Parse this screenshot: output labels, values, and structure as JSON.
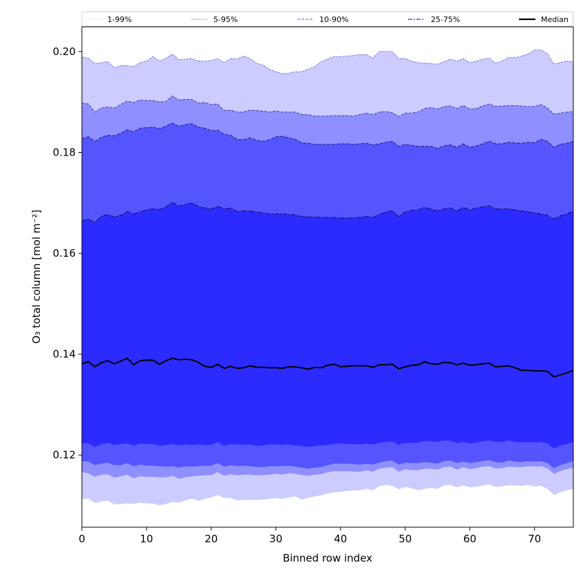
{
  "chart_data": {
    "type": "area",
    "title": "",
    "xlabel": "Binned row index",
    "ylabel": "O₃ total column [mol m⁻²]",
    "xlim": [
      0,
      76
    ],
    "ylim": [
      0.1057,
      0.2049
    ],
    "xticks": [
      0,
      10,
      20,
      30,
      40,
      50,
      60,
      70
    ],
    "xtick_labels": [
      "0",
      "10",
      "20",
      "30",
      "40",
      "50",
      "60",
      "70"
    ],
    "yticks": [
      0.12,
      0.14,
      0.16,
      0.18,
      0.2
    ],
    "ytick_labels": [
      "0.12",
      "0.14",
      "0.16",
      "0.18",
      "0.20"
    ],
    "grid": false,
    "legend_position": "top",
    "legend": [
      {
        "label": "1-99%",
        "color": "#ccccff",
        "style": "dotted-dash"
      },
      {
        "label": "5-95%",
        "color": "#8f8fff",
        "style": "dashed"
      },
      {
        "label": "10-90%",
        "color": "#5555ff",
        "style": "dashed"
      },
      {
        "label": "25-75%",
        "color": "#2b2bff",
        "style": "dash-dot"
      },
      {
        "label": "Median",
        "color": "#000000",
        "style": "solid"
      }
    ],
    "bands": [
      {
        "name": "1-99%",
        "fill": "#ccccff",
        "edge": "#5a5ad6",
        "edge_width": 0.8
      },
      {
        "name": "5-95%",
        "fill": "#8f8fff",
        "edge": "#3a3ab0",
        "edge_width": 1.0
      },
      {
        "name": "10-90%",
        "fill": "#5555ff",
        "edge": "#1f1f8a",
        "edge_width": 1.1
      },
      {
        "name": "25-75%",
        "fill": "#2b2bff",
        "edge": "#101060",
        "edge_width": 1.2
      }
    ],
    "x": [
      0,
      1,
      2,
      3,
      4,
      5,
      6,
      7,
      8,
      9,
      10,
      11,
      12,
      13,
      14,
      15,
      16,
      17,
      18,
      19,
      20,
      21,
      22,
      23,
      24,
      25,
      26,
      27,
      28,
      29,
      30,
      31,
      32,
      33,
      34,
      35,
      36,
      37,
      38,
      39,
      40,
      41,
      42,
      43,
      44,
      45,
      46,
      47,
      48,
      49,
      50,
      51,
      52,
      53,
      54,
      55,
      56,
      57,
      58,
      59,
      60,
      61,
      62,
      63,
      64,
      65,
      66,
      67,
      68,
      69,
      70,
      71,
      72,
      73,
      74,
      75,
      76
    ],
    "series": [
      {
        "name": "p99",
        "values": [
          0.1989,
          0.1987,
          0.1976,
          0.1978,
          0.198,
          0.1968,
          0.1972,
          0.1972,
          0.197,
          0.1978,
          0.1981,
          0.199,
          0.1981,
          0.1987,
          0.1995,
          0.1984,
          0.1985,
          0.1986,
          0.1981,
          0.1981,
          0.1982,
          0.1986,
          0.1978,
          0.1986,
          0.1985,
          0.1991,
          0.1986,
          0.1977,
          0.1973,
          0.1965,
          0.196,
          0.1956,
          0.1957,
          0.196,
          0.196,
          0.1965,
          0.197,
          0.198,
          0.1985,
          0.199,
          0.199,
          0.1991,
          0.1992,
          0.1994,
          0.1994,
          0.1987,
          0.2,
          0.2,
          0.2,
          0.1986,
          0.1986,
          0.1981,
          0.1978,
          0.1977,
          0.1976,
          0.1975,
          0.198,
          0.1985,
          0.1981,
          0.1986,
          0.1978,
          0.1981,
          0.1985,
          0.1987,
          0.1977,
          0.1981,
          0.1988,
          0.1988,
          0.1991,
          0.1995,
          0.2003,
          0.2003,
          0.1996,
          0.1975,
          0.1978,
          0.1981,
          0.198
        ]
      },
      {
        "name": "p95",
        "values": [
          0.1898,
          0.1896,
          0.188,
          0.1888,
          0.189,
          0.1888,
          0.1895,
          0.1902,
          0.1899,
          0.1904,
          0.1903,
          0.1903,
          0.19,
          0.1901,
          0.1912,
          0.1904,
          0.1905,
          0.1905,
          0.1898,
          0.1899,
          0.1895,
          0.1896,
          0.1883,
          0.1884,
          0.188,
          0.188,
          0.1884,
          0.1883,
          0.1882,
          0.188,
          0.1882,
          0.188,
          0.188,
          0.188,
          0.1875,
          0.1875,
          0.1872,
          0.1872,
          0.1872,
          0.1873,
          0.1873,
          0.1873,
          0.1872,
          0.1875,
          0.1878,
          0.1875,
          0.188,
          0.1881,
          0.1879,
          0.1871,
          0.1878,
          0.1878,
          0.188,
          0.1887,
          0.1889,
          0.1886,
          0.1891,
          0.1892,
          0.1887,
          0.1893,
          0.1886,
          0.1887,
          0.1892,
          0.1896,
          0.1891,
          0.1892,
          0.1893,
          0.1893,
          0.1892,
          0.1891,
          0.1891,
          0.1895,
          0.1888,
          0.1876,
          0.1878,
          0.188,
          0.1881
        ]
      },
      {
        "name": "p90",
        "values": [
          0.1827,
          0.1831,
          0.1822,
          0.183,
          0.1834,
          0.1833,
          0.1838,
          0.1845,
          0.1841,
          0.1848,
          0.1849,
          0.185,
          0.1847,
          0.1852,
          0.1858,
          0.1852,
          0.1855,
          0.1857,
          0.185,
          0.1848,
          0.1843,
          0.1844,
          0.1836,
          0.1834,
          0.1826,
          0.1825,
          0.1829,
          0.1824,
          0.1822,
          0.1825,
          0.1831,
          0.1832,
          0.1829,
          0.1826,
          0.1819,
          0.1818,
          0.1816,
          0.1816,
          0.1816,
          0.1816,
          0.1817,
          0.1817,
          0.1816,
          0.1817,
          0.1818,
          0.1815,
          0.1817,
          0.182,
          0.1822,
          0.1812,
          0.1816,
          0.1814,
          0.1812,
          0.1812,
          0.1812,
          0.1808,
          0.1813,
          0.1815,
          0.181,
          0.1817,
          0.181,
          0.1813,
          0.1817,
          0.1822,
          0.1817,
          0.1817,
          0.182,
          0.1819,
          0.1818,
          0.182,
          0.1819,
          0.1826,
          0.1822,
          0.181,
          0.1816,
          0.1818,
          0.1822
        ]
      },
      {
        "name": "p75",
        "values": [
          0.1664,
          0.1668,
          0.1661,
          0.1673,
          0.1677,
          0.1672,
          0.1675,
          0.1683,
          0.1678,
          0.1682,
          0.1686,
          0.1688,
          0.1687,
          0.1692,
          0.1701,
          0.1693,
          0.1697,
          0.17,
          0.1693,
          0.169,
          0.1688,
          0.1693,
          0.1688,
          0.169,
          0.1683,
          0.1684,
          0.1684,
          0.1682,
          0.168,
          0.1678,
          0.1678,
          0.1678,
          0.1677,
          0.1676,
          0.1673,
          0.1672,
          0.1672,
          0.1671,
          0.1671,
          0.1671,
          0.167,
          0.167,
          0.167,
          0.1671,
          0.1673,
          0.1671,
          0.1677,
          0.1682,
          0.1684,
          0.1673,
          0.1682,
          0.1685,
          0.1686,
          0.1691,
          0.1688,
          0.1684,
          0.1688,
          0.169,
          0.1684,
          0.1691,
          0.1686,
          0.169,
          0.1692,
          0.1694,
          0.1688,
          0.1688,
          0.1688,
          0.1686,
          0.1684,
          0.1682,
          0.168,
          0.1678,
          0.1675,
          0.1668,
          0.1674,
          0.1678,
          0.1684
        ]
      },
      {
        "name": "median",
        "values": [
          0.1381,
          0.1385,
          0.1375,
          0.1383,
          0.1387,
          0.1381,
          0.1386,
          0.1392,
          0.1379,
          0.1387,
          0.1388,
          0.1388,
          0.138,
          0.1387,
          0.1392,
          0.1389,
          0.139,
          0.1389,
          0.1384,
          0.1376,
          0.1374,
          0.138,
          0.1372,
          0.1376,
          0.1372,
          0.1373,
          0.1377,
          0.1374,
          0.1374,
          0.1373,
          0.1373,
          0.1372,
          0.1375,
          0.1375,
          0.1373,
          0.137,
          0.1374,
          0.1373,
          0.1378,
          0.138,
          0.1375,
          0.1376,
          0.1377,
          0.1377,
          0.1377,
          0.1374,
          0.1379,
          0.1379,
          0.138,
          0.1371,
          0.1375,
          0.1378,
          0.1379,
          0.1385,
          0.1381,
          0.138,
          0.1384,
          0.1383,
          0.1379,
          0.1382,
          0.1378,
          0.1379,
          0.1381,
          0.1382,
          0.1375,
          0.1376,
          0.1377,
          0.1373,
          0.1368,
          0.1368,
          0.1367,
          0.1367,
          0.1366,
          0.1355,
          0.1359,
          0.1363,
          0.1368
        ]
      },
      {
        "name": "p25",
        "values": [
          0.1224,
          0.1223,
          0.1216,
          0.1221,
          0.1224,
          0.122,
          0.1222,
          0.1223,
          0.1219,
          0.1223,
          0.1222,
          0.1222,
          0.1218,
          0.122,
          0.1222,
          0.1219,
          0.1221,
          0.122,
          0.1221,
          0.122,
          0.122,
          0.1226,
          0.1218,
          0.1222,
          0.1221,
          0.122,
          0.1221,
          0.1218,
          0.1219,
          0.1221,
          0.1221,
          0.122,
          0.1221,
          0.1219,
          0.1218,
          0.1216,
          0.1218,
          0.1219,
          0.122,
          0.1222,
          0.1223,
          0.1222,
          0.1222,
          0.1221,
          0.1223,
          0.1221,
          0.1224,
          0.1226,
          0.1227,
          0.122,
          0.1224,
          0.1224,
          0.1224,
          0.1228,
          0.1227,
          0.1226,
          0.1229,
          0.1228,
          0.1224,
          0.1226,
          0.1223,
          0.1225,
          0.1227,
          0.1229,
          0.1226,
          0.1226,
          0.1229,
          0.1226,
          0.1225,
          0.1226,
          0.1225,
          0.1226,
          0.1223,
          0.1213,
          0.1219,
          0.1222,
          0.1226
        ]
      },
      {
        "name": "p10",
        "values": [
          0.1188,
          0.1187,
          0.118,
          0.1183,
          0.1185,
          0.118,
          0.118,
          0.1184,
          0.1178,
          0.1181,
          0.1179,
          0.1179,
          0.1178,
          0.1177,
          0.1178,
          0.1175,
          0.1178,
          0.1177,
          0.1178,
          0.1179,
          0.1179,
          0.1184,
          0.1177,
          0.118,
          0.1178,
          0.1179,
          0.1178,
          0.1176,
          0.1176,
          0.1178,
          0.1178,
          0.1178,
          0.1179,
          0.1177,
          0.1175,
          0.1173,
          0.1175,
          0.1176,
          0.118,
          0.1183,
          0.1183,
          0.1183,
          0.1182,
          0.1181,
          0.1183,
          0.1181,
          0.1185,
          0.1188,
          0.1189,
          0.1181,
          0.1185,
          0.1184,
          0.1184,
          0.1186,
          0.1185,
          0.1183,
          0.1188,
          0.1189,
          0.1184,
          0.1187,
          0.1184,
          0.1186,
          0.1188,
          0.119,
          0.1186,
          0.1185,
          0.1189,
          0.1187,
          0.1186,
          0.1188,
          0.1187,
          0.1188,
          0.1184,
          0.1174,
          0.118,
          0.1184,
          0.1188
        ]
      },
      {
        "name": "p5",
        "values": [
          0.1166,
          0.1164,
          0.1157,
          0.1161,
          0.1162,
          0.1155,
          0.1158,
          0.1161,
          0.1154,
          0.1158,
          0.1157,
          0.1157,
          0.1156,
          0.1156,
          0.1159,
          0.1153,
          0.1156,
          0.1158,
          0.1159,
          0.116,
          0.116,
          0.1166,
          0.1159,
          0.1162,
          0.116,
          0.1161,
          0.1161,
          0.116,
          0.116,
          0.1161,
          0.1163,
          0.1161,
          0.1164,
          0.1163,
          0.116,
          0.1159,
          0.1161,
          0.1162,
          0.1166,
          0.1168,
          0.1168,
          0.1168,
          0.1167,
          0.1167,
          0.117,
          0.1167,
          0.1173,
          0.1175,
          0.1176,
          0.1167,
          0.1172,
          0.117,
          0.117,
          0.1173,
          0.1173,
          0.1171,
          0.1176,
          0.1177,
          0.1171,
          0.1176,
          0.1172,
          0.1174,
          0.1177,
          0.1178,
          0.1173,
          0.1174,
          0.1177,
          0.1176,
          0.1176,
          0.1178,
          0.1177,
          0.1178,
          0.1174,
          0.1163,
          0.1168,
          0.1172,
          0.1175
        ]
      },
      {
        "name": "p1",
        "values": [
          0.1112,
          0.1114,
          0.1105,
          0.1108,
          0.111,
          0.1102,
          0.1103,
          0.1104,
          0.1103,
          0.1106,
          0.1104,
          0.1104,
          0.11,
          0.1103,
          0.1107,
          0.1106,
          0.111,
          0.1114,
          0.1109,
          0.1113,
          0.1116,
          0.1121,
          0.1115,
          0.1115,
          0.111,
          0.1111,
          0.1111,
          0.1111,
          0.1112,
          0.1113,
          0.1115,
          0.1113,
          0.1116,
          0.1118,
          0.1112,
          0.1115,
          0.1118,
          0.112,
          0.1124,
          0.1126,
          0.1127,
          0.1129,
          0.113,
          0.113,
          0.1133,
          0.113,
          0.1138,
          0.1141,
          0.1139,
          0.1132,
          0.1137,
          0.1134,
          0.113,
          0.1133,
          0.1135,
          0.1133,
          0.114,
          0.1141,
          0.1136,
          0.114,
          0.1136,
          0.1137,
          0.1139,
          0.1142,
          0.1137,
          0.1138,
          0.114,
          0.114,
          0.1139,
          0.1141,
          0.1138,
          0.1139,
          0.1133,
          0.1121,
          0.1126,
          0.113,
          0.1133
        ]
      }
    ]
  }
}
